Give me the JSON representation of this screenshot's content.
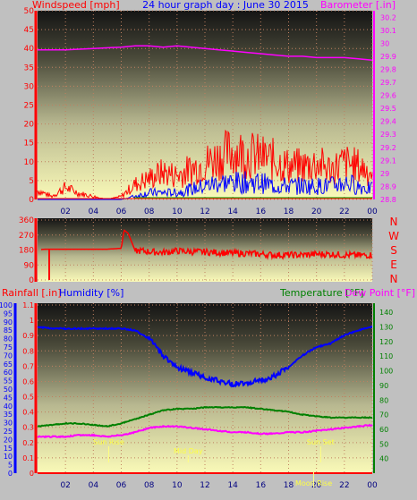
{
  "header": {
    "wind_label": "Windspeed [mph]",
    "title": "24 hour graph day : June 30 2015",
    "baro_label": "Barometer [.in]"
  },
  "chart_data": [
    {
      "id": "wind-baro",
      "type": "line",
      "title": "24 hour graph day : June 30 2015",
      "x_ticks": [
        "02",
        "04",
        "06",
        "08",
        "10",
        "12",
        "14",
        "16",
        "18",
        "20",
        "22",
        "00"
      ],
      "xlim": [
        0,
        24
      ],
      "y_left": {
        "label": "Windspeed [mph]",
        "ylim": [
          0,
          50
        ],
        "ticks": [
          "0",
          "5",
          "10",
          "15",
          "20",
          "25",
          "30",
          "35",
          "40",
          "45",
          "50"
        ]
      },
      "y_right": {
        "label": "Barometer [.in]",
        "ylim": [
          28.8,
          30.25
        ],
        "ticks": [
          "28.8",
          "28.9",
          "29",
          "29.1",
          "29.2",
          "29.3",
          "29.4",
          "29.5",
          "29.6",
          "29.7",
          "29.8",
          "29.9",
          "30",
          "30.1",
          "30.2"
        ]
      },
      "series": [
        {
          "name": "Barometer",
          "axis": "right",
          "color": "#ff00ff",
          "x": [
            0,
            2,
            4,
            6,
            7,
            8,
            9,
            10,
            11,
            12,
            13,
            14,
            15,
            16,
            17,
            18,
            19,
            20,
            21,
            22,
            23,
            24
          ],
          "y": [
            29.95,
            29.95,
            29.96,
            29.97,
            29.98,
            29.98,
            29.97,
            29.98,
            29.97,
            29.96,
            29.95,
            29.94,
            29.93,
            29.92,
            29.91,
            29.9,
            29.9,
            29.89,
            29.89,
            29.89,
            29.88,
            29.87
          ]
        },
        {
          "name": "Wind gust",
          "axis": "left",
          "color": "#ff0000",
          "x": [
            0,
            1,
            2,
            3,
            4,
            5,
            6,
            7,
            8,
            9,
            10,
            11,
            12,
            13,
            14,
            15,
            16,
            17,
            18,
            19,
            20,
            21,
            22,
            23,
            24
          ],
          "y": [
            3,
            1,
            4,
            2,
            1,
            0,
            1,
            5,
            7,
            9,
            8,
            10,
            12,
            14,
            16,
            15,
            14,
            13,
            11,
            11,
            12,
            10,
            12,
            11,
            9
          ]
        },
        {
          "name": "Wind average",
          "axis": "left",
          "color": "#0000ff",
          "x": [
            0,
            1,
            2,
            3,
            4,
            5,
            6,
            7,
            8,
            9,
            10,
            11,
            12,
            13,
            14,
            15,
            16,
            17,
            18,
            19,
            20,
            21,
            22,
            23,
            24
          ],
          "y": [
            0,
            0,
            0,
            0,
            0,
            0,
            0,
            1,
            2,
            2,
            2,
            3,
            4,
            5,
            5,
            5,
            5,
            4,
            4,
            4,
            4,
            4,
            5,
            4,
            3
          ]
        }
      ]
    },
    {
      "id": "direction",
      "type": "line",
      "y_left": {
        "ticks": [
          "0",
          "90",
          "180",
          "270",
          "360"
        ],
        "ylim": [
          0,
          360
        ]
      },
      "y_right": {
        "ticks": [
          "N",
          "W",
          "S",
          "E",
          "N"
        ]
      },
      "series": [
        {
          "name": "Wind direction",
          "color": "#ff0000",
          "x": [
            0,
            0.5,
            1,
            2,
            3,
            4,
            5,
            6,
            6.2,
            6.5,
            7,
            7.5,
            8,
            9,
            10,
            11,
            12,
            13,
            14,
            15,
            16,
            17,
            18,
            19,
            20,
            21,
            22,
            23,
            24
          ],
          "y": [
            180,
            185,
            185,
            185,
            185,
            185,
            185,
            190,
            300,
            280,
            175,
            175,
            170,
            165,
            175,
            170,
            168,
            165,
            160,
            160,
            155,
            150,
            150,
            150,
            155,
            155,
            150,
            148,
            150
          ]
        }
      ]
    },
    {
      "id": "rain-hum-temp",
      "type": "line",
      "labels": {
        "rainfall": "Rainfall [.in]",
        "humidity": "Humidity [%]",
        "temperature": "Temperature [°F]",
        "dewpoint": "Dew Point [°F]"
      },
      "y_rain": {
        "ylim": [
          0,
          1.1
        ],
        "ticks": [
          "0",
          "0.1",
          "0.2",
          "0.3",
          "0.4",
          "0.5",
          "0.6",
          "0.7",
          "0.8",
          "0.9",
          "1",
          "1.1"
        ]
      },
      "y_hum": {
        "ylim": [
          0,
          100
        ],
        "ticks": [
          "0",
          "5",
          "10",
          "15",
          "20",
          "25",
          "30",
          "35",
          "40",
          "45",
          "50",
          "55",
          "60",
          "65",
          "70",
          "75",
          "80",
          "85",
          "90",
          "95",
          "100"
        ]
      },
      "y_temp": {
        "ylim": [
          30,
          145
        ],
        "ticks": [
          "40",
          "50",
          "60",
          "70",
          "80",
          "90",
          "100",
          "110",
          "120",
          "130",
          "140"
        ]
      },
      "annotations": [
        "Sun Rise",
        "Mid Day",
        "Sun Set",
        "Moon Rise"
      ],
      "series": [
        {
          "name": "Humidity",
          "axis": "hum",
          "color": "#0000ff",
          "x": [
            0,
            1,
            2,
            3,
            4,
            5,
            6,
            7,
            8,
            9,
            10,
            11,
            12,
            13,
            14,
            15,
            16,
            17,
            18,
            19,
            20,
            21,
            22,
            23,
            24
          ],
          "y": [
            87,
            86,
            86,
            86,
            86,
            86,
            86,
            85,
            80,
            70,
            63,
            60,
            57,
            55,
            53,
            54,
            55,
            58,
            63,
            70,
            75,
            77,
            82,
            85,
            87
          ]
        },
        {
          "name": "Temperature",
          "axis": "temp",
          "color": "#008000",
          "x": [
            0,
            1,
            2,
            3,
            4,
            5,
            6,
            7,
            8,
            9,
            10,
            11,
            12,
            13,
            14,
            15,
            16,
            17,
            18,
            19,
            20,
            21,
            22,
            23,
            24
          ],
          "y": [
            62,
            63,
            64,
            64,
            63,
            62,
            64,
            67,
            70,
            73,
            74,
            74,
            75,
            75,
            75,
            75,
            74,
            73,
            72,
            70,
            69,
            68,
            68,
            68,
            68
          ]
        },
        {
          "name": "Dew Point",
          "axis": "temp",
          "color": "#ff00ff",
          "x": [
            0,
            1,
            2,
            3,
            4,
            5,
            6,
            7,
            8,
            9,
            10,
            11,
            12,
            13,
            14,
            15,
            16,
            17,
            18,
            19,
            20,
            21,
            22,
            23,
            24
          ],
          "y": [
            55,
            55,
            55,
            56,
            56,
            55,
            56,
            58,
            61,
            62,
            62,
            61,
            60,
            59,
            58,
            58,
            57,
            57,
            58,
            58,
            59,
            60,
            61,
            62,
            63
          ]
        },
        {
          "name": "Rainfall",
          "axis": "rain",
          "color": "#ff0000",
          "x": [
            0,
            24
          ],
          "y": [
            0,
            0
          ]
        }
      ]
    }
  ]
}
